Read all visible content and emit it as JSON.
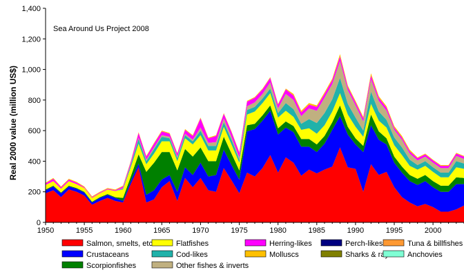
{
  "chart_data": {
    "type": "area",
    "stacked": true,
    "title": "",
    "annotation": "Sea Around Us Project 2008",
    "xlabel": "",
    "ylabel": "Real 2000 value (million US$)",
    "xlim": [
      1950,
      2004
    ],
    "ylim": [
      0,
      1400
    ],
    "x_ticks": [
      "1950",
      "1955",
      "1960",
      "1965",
      "1970",
      "1975",
      "1980",
      "1985",
      "1990",
      "1995",
      "2000"
    ],
    "y_ticks": [
      "0",
      "200",
      "400",
      "600",
      "800",
      "1,000",
      "1,200",
      "1,400"
    ],
    "x": [
      1950,
      1951,
      1952,
      1953,
      1954,
      1955,
      1956,
      1957,
      1958,
      1959,
      1960,
      1961,
      1962,
      1963,
      1964,
      1965,
      1966,
      1967,
      1968,
      1969,
      1970,
      1971,
      1972,
      1973,
      1974,
      1975,
      1976,
      1977,
      1978,
      1979,
      1980,
      1981,
      1982,
      1983,
      1984,
      1985,
      1986,
      1987,
      1988,
      1989,
      1990,
      1991,
      1992,
      1993,
      1994,
      1995,
      1996,
      1997,
      1998,
      1999,
      2000,
      2001,
      2002,
      2003,
      2004
    ],
    "series": [
      {
        "name": "Salmon, smelts, etc",
        "color": "#ff0000",
        "values": [
          190,
          210,
          165,
          215,
          200,
          175,
          115,
          140,
          160,
          140,
          130,
          250,
          360,
          130,
          150,
          230,
          270,
          140,
          290,
          230,
          290,
          210,
          200,
          355,
          275,
          190,
          325,
          300,
          355,
          440,
          325,
          425,
          390,
          305,
          345,
          320,
          345,
          365,
          490,
          360,
          350,
          200,
          380,
          310,
          330,
          230,
          165,
          130,
          105,
          120,
          100,
          70,
          70,
          85,
          110
        ]
      },
      {
        "name": "Crustaceans",
        "color": "#0000ff",
        "values": [
          20,
          25,
          25,
          20,
          20,
          20,
          15,
          20,
          20,
          20,
          10,
          20,
          25,
          50,
          60,
          50,
          40,
          60,
          70,
          80,
          100,
          90,
          110,
          120,
          100,
          90,
          270,
          310,
          310,
          290,
          250,
          195,
          200,
          190,
          150,
          140,
          170,
          240,
          205,
          215,
          160,
          260,
          255,
          230,
          180,
          160,
          160,
          140,
          140,
          150,
          130,
          130,
          130,
          165,
          140
        ]
      },
      {
        "name": "Scorpionfishes",
        "color": "#008000",
        "values": [
          5,
          5,
          5,
          5,
          5,
          5,
          5,
          5,
          5,
          5,
          20,
          30,
          60,
          150,
          180,
          180,
          150,
          140,
          120,
          120,
          100,
          100,
          90,
          85,
          75,
          60,
          40,
          35,
          35,
          35,
          40,
          40,
          40,
          50,
          50,
          50,
          50,
          50,
          70,
          50,
          40,
          40,
          70,
          55,
          40,
          40,
          40,
          40,
          40,
          40,
          40,
          40,
          40,
          45,
          40
        ]
      },
      {
        "name": "Flatfishes",
        "color": "#ffff00",
        "values": [
          30,
          30,
          25,
          30,
          25,
          25,
          25,
          25,
          30,
          40,
          55,
          60,
          70,
          50,
          60,
          70,
          70,
          60,
          70,
          80,
          80,
          70,
          70,
          65,
          60,
          50,
          70,
          80,
          80,
          80,
          70,
          70,
          60,
          60,
          70,
          70,
          70,
          70,
          80,
          80,
          75,
          60,
          70,
          70,
          70,
          75,
          75,
          60,
          60,
          60,
          60,
          55,
          55,
          65,
          60
        ]
      },
      {
        "name": "Cod-likes",
        "color": "#20b2aa",
        "values": [
          0,
          0,
          0,
          0,
          0,
          0,
          0,
          0,
          0,
          0,
          5,
          15,
          30,
          20,
          30,
          30,
          20,
          20,
          20,
          20,
          30,
          30,
          30,
          30,
          30,
          20,
          30,
          30,
          30,
          30,
          30,
          50,
          50,
          40,
          60,
          70,
          80,
          80,
          100,
          70,
          60,
          40,
          80,
          60,
          50,
          50,
          50,
          40,
          30,
          30,
          30,
          30,
          30,
          40,
          35
        ]
      },
      {
        "name": "Other fishes & inverts",
        "color": "#c0b080",
        "values": [
          0,
          0,
          0,
          0,
          0,
          0,
          0,
          0,
          0,
          0,
          5,
          5,
          10,
          10,
          10,
          10,
          10,
          10,
          10,
          10,
          20,
          20,
          25,
          25,
          20,
          15,
          25,
          30,
          30,
          40,
          30,
          60,
          60,
          50,
          70,
          80,
          100,
          100,
          110,
          90,
          80,
          60,
          80,
          70,
          60,
          50,
          50,
          40,
          30,
          30,
          30,
          30,
          30,
          35,
          30
        ]
      },
      {
        "name": "Herring-likes",
        "color": "#ff00ff",
        "values": [
          10,
          15,
          10,
          10,
          10,
          5,
          5,
          5,
          5,
          5,
          10,
          15,
          30,
          20,
          25,
          25,
          20,
          20,
          25,
          25,
          60,
          30,
          40,
          30,
          30,
          30,
          30,
          30,
          30,
          30,
          25,
          30,
          30,
          25,
          25,
          25,
          25,
          25,
          30,
          20,
          20,
          20,
          25,
          20,
          20,
          15,
          15,
          15,
          15,
          15,
          15,
          15,
          15,
          15,
          15
        ]
      },
      {
        "name": "Molluscs",
        "color": "#ffc000",
        "values": [
          5,
          5,
          5,
          5,
          5,
          5,
          5,
          5,
          5,
          5,
          5,
          5,
          5,
          5,
          5,
          5,
          5,
          5,
          5,
          5,
          5,
          5,
          5,
          5,
          5,
          5,
          5,
          5,
          5,
          5,
          5,
          5,
          10,
          10,
          10,
          10,
          10,
          10,
          15,
          10,
          10,
          10,
          15,
          10,
          10,
          10,
          10,
          10,
          5,
          5,
          5,
          5,
          5,
          5,
          5
        ]
      },
      {
        "name": "Perch-likes",
        "color": "#000080",
        "values": [
          0,
          0,
          0,
          0,
          0,
          0,
          0,
          0,
          0,
          0,
          0,
          0,
          0,
          0,
          0,
          0,
          0,
          0,
          0,
          0,
          0,
          0,
          0,
          0,
          0,
          0,
          0,
          0,
          0,
          0,
          0,
          0,
          0,
          0,
          0,
          0,
          0,
          0,
          0,
          0,
          0,
          0,
          0,
          0,
          0,
          0,
          0,
          0,
          0,
          0,
          0,
          0,
          0,
          0,
          0
        ]
      },
      {
        "name": "Sharks & rays",
        "color": "#808000",
        "values": [
          0,
          0,
          0,
          0,
          0,
          0,
          0,
          0,
          0,
          0,
          0,
          0,
          0,
          0,
          0,
          0,
          0,
          0,
          0,
          0,
          0,
          0,
          0,
          0,
          0,
          0,
          0,
          0,
          0,
          0,
          0,
          0,
          0,
          0,
          0,
          0,
          0,
          0,
          0,
          0,
          0,
          0,
          0,
          0,
          0,
          0,
          0,
          0,
          0,
          0,
          0,
          0,
          0,
          0,
          0
        ]
      },
      {
        "name": "Tuna & billfishes",
        "color": "#ff9933",
        "values": [
          0,
          0,
          0,
          0,
          0,
          0,
          0,
          0,
          0,
          0,
          0,
          0,
          0,
          0,
          0,
          0,
          0,
          0,
          0,
          0,
          0,
          0,
          0,
          0,
          0,
          0,
          0,
          0,
          0,
          0,
          0,
          0,
          0,
          0,
          0,
          0,
          0,
          0,
          0,
          0,
          0,
          0,
          0,
          0,
          0,
          0,
          0,
          0,
          0,
          0,
          0,
          0,
          0,
          0,
          0
        ]
      },
      {
        "name": "Anchovies",
        "color": "#7fffd4",
        "values": [
          0,
          0,
          0,
          0,
          0,
          0,
          0,
          0,
          0,
          0,
          0,
          0,
          0,
          0,
          0,
          0,
          0,
          0,
          0,
          0,
          0,
          0,
          0,
          0,
          0,
          0,
          0,
          0,
          0,
          0,
          0,
          0,
          0,
          0,
          0,
          0,
          0,
          0,
          0,
          0,
          0,
          0,
          0,
          0,
          0,
          0,
          0,
          0,
          0,
          0,
          0,
          0,
          0,
          0,
          0
        ]
      }
    ],
    "legend": {
      "placement": "bottom",
      "rows": [
        [
          "Salmon, smelts, etc",
          "Flatfishes",
          "Herring-likes",
          "Perch-likes",
          "Tuna & billfishes"
        ],
        [
          "Crustaceans",
          "Cod-likes",
          "Molluscs",
          "Sharks & rays",
          "Anchovies"
        ],
        [
          "Scorpionfishes",
          "Other fishes & inverts"
        ]
      ]
    },
    "grid": false
  }
}
